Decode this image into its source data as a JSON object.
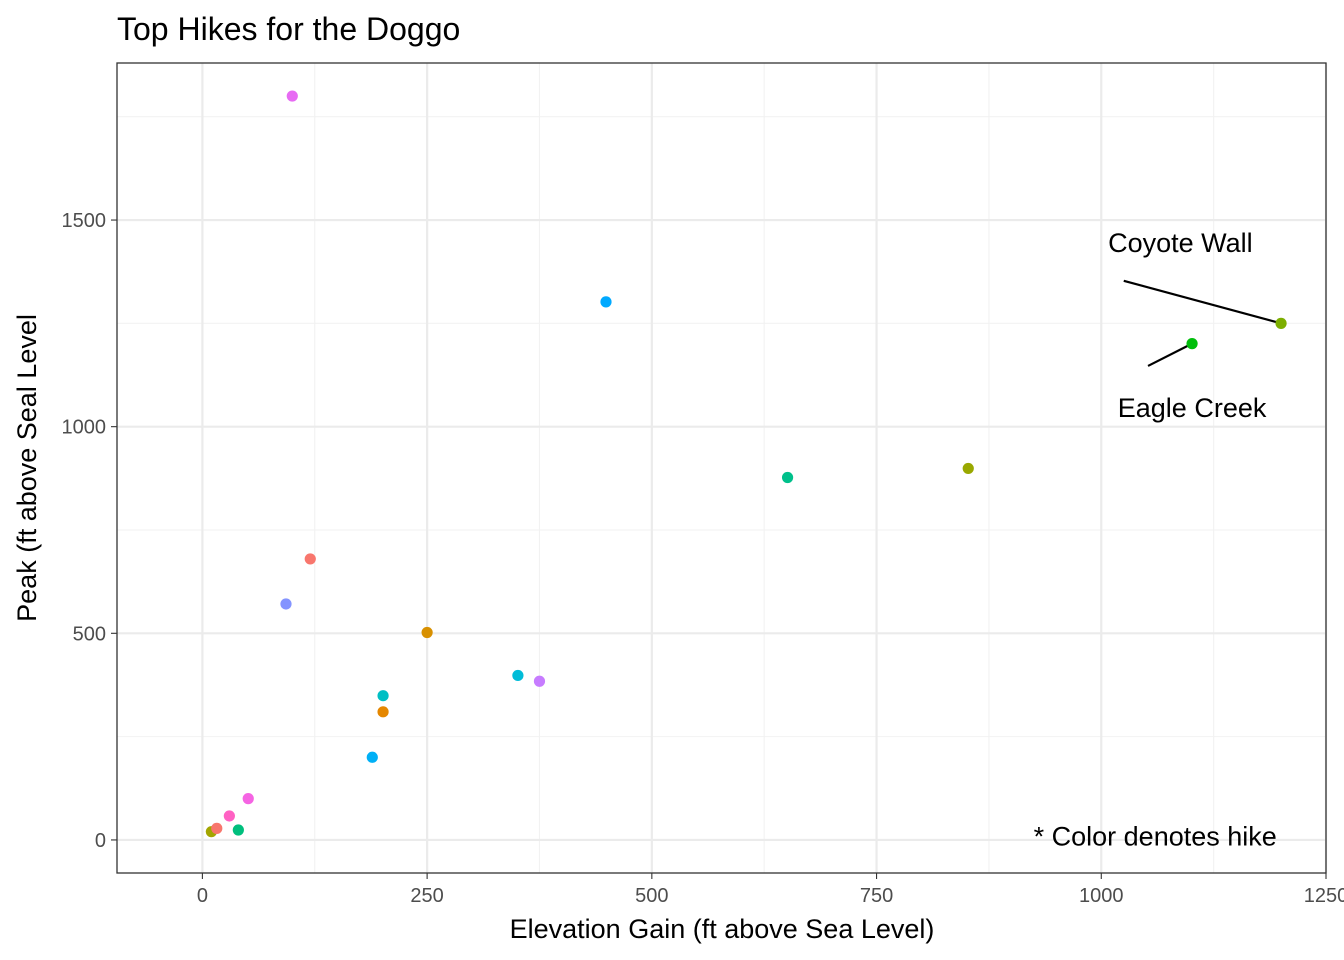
{
  "chart_data": {
    "type": "scatter",
    "title": "Top Hikes for the Doggo",
    "xlabel": "Elevation Gain (ft above Sea Level)",
    "ylabel": "Peak (ft above Seal Level",
    "xlim": [
      -95,
      1250
    ],
    "ylim": [
      -80,
      1880
    ],
    "x_ticks": [
      0,
      250,
      500,
      750,
      1000,
      1250
    ],
    "x_tick_labels": [
      "0",
      "250",
      "500",
      "750",
      "1000",
      "1250"
    ],
    "y_ticks": [
      0,
      500,
      1000,
      1500
    ],
    "y_tick_labels": [
      "0",
      "500",
      "1000",
      "1500"
    ],
    "grid": true,
    "legend": "none",
    "points": [
      {
        "x": 10,
        "y": 20,
        "color": "#a3a500"
      },
      {
        "x": 16,
        "y": 28,
        "color": "#f8766d"
      },
      {
        "x": 30,
        "y": 58,
        "color": "#ff61c3"
      },
      {
        "x": 40,
        "y": 24,
        "color": "#00bf7d"
      },
      {
        "x": 51,
        "y": 100,
        "color": "#f564e3"
      },
      {
        "x": 93,
        "y": 571,
        "color": "#8494ff"
      },
      {
        "x": 100,
        "y": 1800,
        "color": "#e76bf3"
      },
      {
        "x": 120,
        "y": 680,
        "color": "#f8766d"
      },
      {
        "x": 189,
        "y": 200,
        "color": "#00b0f6"
      },
      {
        "x": 201,
        "y": 349,
        "color": "#00bfc4"
      },
      {
        "x": 201,
        "y": 310,
        "color": "#e58700"
      },
      {
        "x": 250,
        "y": 502,
        "color": "#d89000"
      },
      {
        "x": 351,
        "y": 398,
        "color": "#00bcd8"
      },
      {
        "x": 375,
        "y": 384,
        "color": "#c77cff"
      },
      {
        "x": 449,
        "y": 1302,
        "color": "#00a9ff"
      },
      {
        "x": 651,
        "y": 877,
        "color": "#00c08b"
      },
      {
        "x": 852,
        "y": 899,
        "color": "#99a800"
      },
      {
        "x": 1101,
        "y": 1201,
        "color": "#00be0b"
      },
      {
        "x": 1200,
        "y": 1250,
        "color": "#7cae00"
      }
    ],
    "annotations": [
      {
        "text": "Coyote Wall",
        "point_index": 18,
        "label_x": 1088,
        "label_y": 1445,
        "line_from": [
          1025,
          1353
        ]
      },
      {
        "text": "Eagle Creek",
        "point_index": 17,
        "label_x": 1101,
        "label_y": 1045,
        "line_from": [
          1052,
          1147
        ]
      },
      {
        "text": "* Color denotes hike",
        "label_x": 1060,
        "label_y": 8
      }
    ]
  }
}
